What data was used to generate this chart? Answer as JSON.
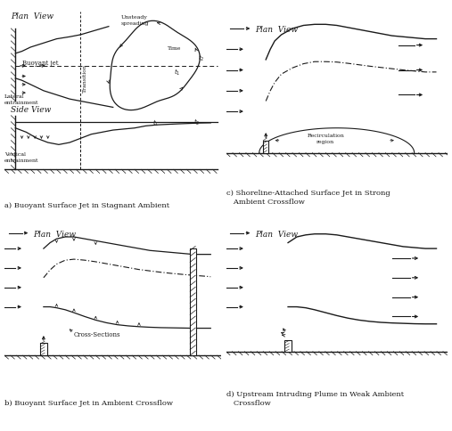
{
  "line_color": "#1a1a1a",
  "font_size": 6.5,
  "title_a": "a) Buoyant Surface Jet in Stagnant Ambient",
  "title_b": "b) Buoyant Surface Jet in Ambient Crossflow",
  "title_c": "c) Shoreline-Attached Surface Jet in Strong\n   Ambient Crossflow",
  "title_d": "d) Upstream Intruding Plume in Weak Ambient\n   Crossflow"
}
